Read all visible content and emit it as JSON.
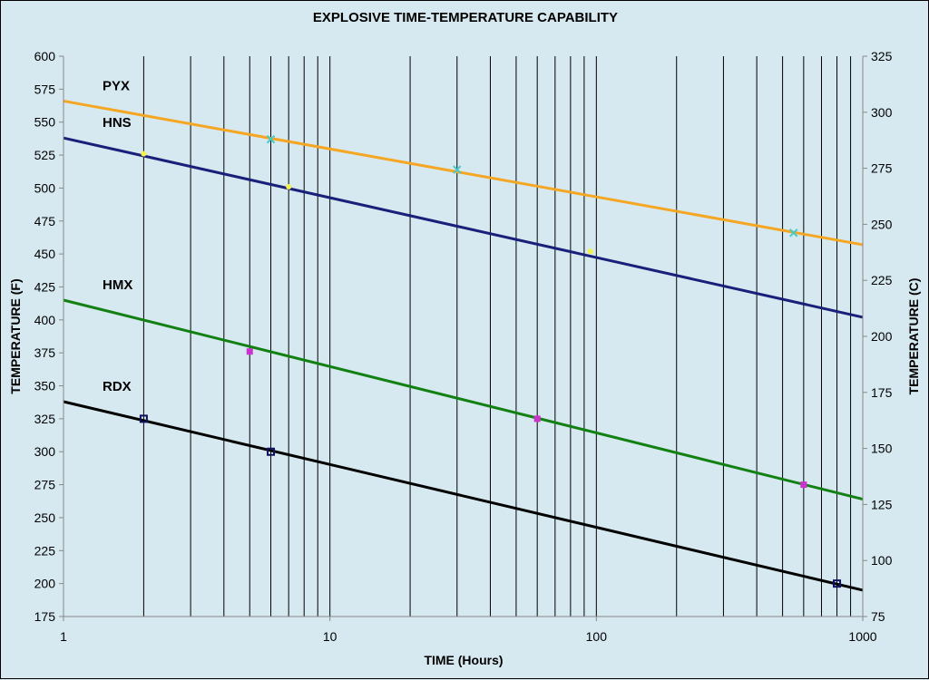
{
  "chart_data": {
    "type": "line",
    "title": "EXPLOSIVE TIME-TEMPERATURE CAPABILITY",
    "xlabel": "TIME  (Hours)",
    "ylabel": "TEMPERATURE  (F)",
    "y2label": "TEMPERATURE  (C)",
    "xscale": "log",
    "xlim": [
      1,
      1000
    ],
    "ylim": [
      175,
      600
    ],
    "y2lim": [
      75,
      325
    ],
    "x_ticks": [
      "1",
      "10",
      "100",
      "1000"
    ],
    "y_ticks": [
      600,
      575,
      550,
      525,
      500,
      475,
      450,
      425,
      400,
      375,
      350,
      325,
      300,
      275,
      250,
      225,
      200,
      175
    ],
    "y2_ticks": [
      325,
      300,
      275,
      250,
      225,
      200,
      175,
      150,
      125,
      100,
      75
    ],
    "grid": "vertical log minor lines",
    "series": [
      {
        "name": "PYX",
        "color": "#f5a623",
        "line": [
          [
            1,
            566
          ],
          [
            1000,
            457
          ]
        ],
        "marker_color": "#48c9c9",
        "marker": "x",
        "points": [
          [
            6,
            537
          ],
          [
            30,
            514
          ],
          [
            550,
            466
          ]
        ]
      },
      {
        "name": "HNS",
        "color": "#1a1f7a",
        "line": [
          [
            1,
            538
          ],
          [
            1000,
            402
          ]
        ],
        "marker_color": "#f2f24a",
        "marker": "dot",
        "points": [
          [
            2,
            526
          ],
          [
            7,
            501
          ],
          [
            95,
            452
          ]
        ]
      },
      {
        "name": "HMX",
        "color": "#138013",
        "line": [
          [
            1,
            415
          ],
          [
            1000,
            264
          ]
        ],
        "marker_color": "#cc33cc",
        "marker": "square",
        "points": [
          [
            5,
            376
          ],
          [
            60,
            325
          ],
          [
            600,
            275
          ]
        ]
      },
      {
        "name": "RDX",
        "color": "#000000",
        "line": [
          [
            1,
            338
          ],
          [
            1000,
            195
          ]
        ],
        "marker_color": "#101060",
        "marker": "square-open",
        "points": [
          [
            2,
            325
          ],
          [
            6,
            300
          ],
          [
            800,
            200
          ]
        ]
      }
    ]
  }
}
